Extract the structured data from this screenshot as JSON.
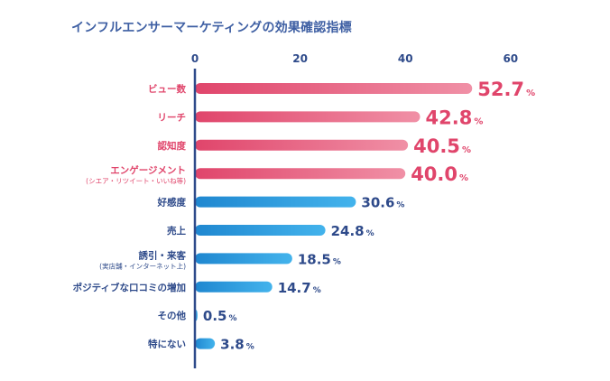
{
  "chart_data": {
    "type": "bar",
    "orientation": "horizontal",
    "title": "インフルエンサーマーケティングの効果確認指標",
    "x_ticks": [
      0,
      20,
      40,
      60
    ],
    "xlim": [
      0,
      60
    ],
    "value_unit": "%",
    "grid": false,
    "categories": [
      {
        "label": "ビュー数",
        "sub": "",
        "value": 52.7,
        "group": "top"
      },
      {
        "label": "リーチ",
        "sub": "",
        "value": 42.8,
        "group": "top"
      },
      {
        "label": "認知度",
        "sub": "",
        "value": 40.5,
        "group": "top"
      },
      {
        "label": "エンゲージメント",
        "sub": "(シエア・リツイート・いいね等)",
        "value": 40.0,
        "group": "top"
      },
      {
        "label": "好感度",
        "sub": "",
        "value": 30.6,
        "group": "other"
      },
      {
        "label": "売上",
        "sub": "",
        "value": 24.8,
        "group": "other"
      },
      {
        "label": "誘引・来客",
        "sub": "(実店舗・インターネット上)",
        "value": 18.5,
        "group": "other"
      },
      {
        "label": "ポジティブな口コミの増加",
        "sub": "",
        "value": 14.7,
        "group": "other"
      },
      {
        "label": "その他",
        "sub": "",
        "value": 0.5,
        "group": "other"
      },
      {
        "label": "特にない",
        "sub": "",
        "value": 3.8,
        "group": "other"
      }
    ],
    "colors": {
      "title": "#3e5fa3",
      "axis": "#2e4a8a",
      "tick_label": "#2e4a8a",
      "top_label": "#e0456b",
      "other_label": "#2e4a8a",
      "top_bar_start": "#e0456b",
      "top_bar_end": "#f090a6",
      "other_bar_start": "#1f87d0",
      "other_bar_end": "#43b3ec",
      "top_value": "#e0456b",
      "other_value": "#2e4a8a"
    }
  }
}
